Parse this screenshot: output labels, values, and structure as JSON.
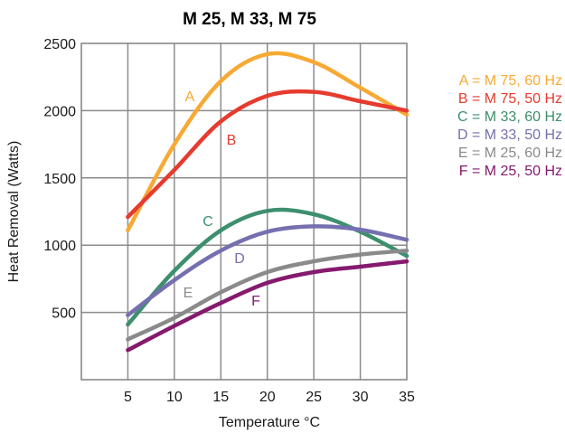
{
  "chart_data": {
    "type": "line",
    "title": "M 25, M 33, M 75",
    "xlabel": "Temperature °C",
    "ylabel": "Heat Removal (Watts)",
    "xlim": [
      0,
      35
    ],
    "ylim": [
      0,
      2500
    ],
    "x_ticks": [
      5,
      10,
      15,
      20,
      25,
      30,
      35
    ],
    "y_ticks": [
      500,
      1000,
      1500,
      2000,
      2500
    ],
    "grid": true,
    "legend_position": "right",
    "series": [
      {
        "name": "A = M 75, 60 Hz",
        "letter": "A",
        "color": "#f7a934",
        "x": [
          5,
          10,
          15,
          20,
          25,
          30,
          35
        ],
        "y": [
          1110,
          1750,
          2220,
          2420,
          2360,
          2170,
          1970
        ]
      },
      {
        "name": "B = M 75, 50 Hz",
        "letter": "B",
        "color": "#e63b2e",
        "x": [
          5,
          10,
          15,
          20,
          25,
          30,
          35
        ],
        "y": [
          1210,
          1560,
          1920,
          2110,
          2140,
          2070,
          2000
        ]
      },
      {
        "name": "C = M 33, 60 Hz",
        "letter": "C",
        "color": "#3d8f6e",
        "x": [
          5,
          10,
          15,
          20,
          25,
          30,
          35
        ],
        "y": [
          410,
          810,
          1110,
          1255,
          1230,
          1100,
          920
        ]
      },
      {
        "name": "D = M 33, 50 Hz",
        "letter": "D",
        "color": "#7470b0",
        "x": [
          5,
          10,
          15,
          20,
          25,
          30,
          35
        ],
        "y": [
          480,
          740,
          960,
          1100,
          1140,
          1115,
          1040
        ]
      },
      {
        "name": "E = M 25, 60 Hz",
        "letter": "E",
        "color": "#8a8a8a",
        "x": [
          5,
          10,
          15,
          20,
          25,
          30,
          35
        ],
        "y": [
          300,
          460,
          650,
          800,
          880,
          930,
          960
        ]
      },
      {
        "name": "F = M 25, 50 Hz",
        "letter": "F",
        "color": "#851a6e",
        "x": [
          5,
          10,
          15,
          20,
          25,
          30,
          35
        ],
        "y": [
          220,
          400,
          570,
          720,
          800,
          840,
          880
        ]
      }
    ]
  }
}
